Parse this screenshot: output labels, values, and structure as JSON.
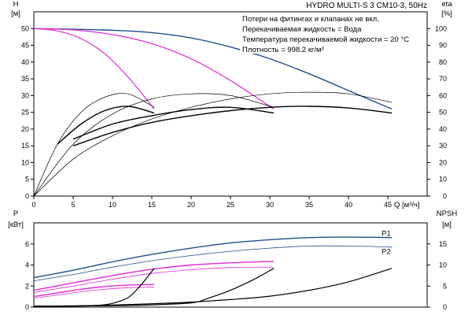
{
  "header": {
    "title": "HYDRO MULTI-S 3 CM10-3, 50Hz"
  },
  "notes": [
    "Потери на фитингах и клапанах не вкл.",
    "Перекачиваемая жидкость = Вода",
    "Температура перекачиваемой жидкости = 20 °C",
    "Плотность = 998.2 кг/м³"
  ],
  "colors": {
    "pump_curve": "#1f4e8c",
    "efficiency": "#e02ad6",
    "system": "#000000"
  },
  "chart_data": [
    {
      "id": "upper",
      "type": "line",
      "xlabel": "Q [м³/ч]",
      "ylabel_left": [
        "H",
        "[м]"
      ],
      "ylabel_right": [
        "eta",
        "[%]"
      ],
      "xlim": [
        0,
        50
      ],
      "ylim_left": [
        0,
        55
      ],
      "ylim_right": [
        0,
        110
      ],
      "x_ticks": [
        0,
        5,
        10,
        15,
        20,
        25,
        30,
        35,
        40,
        45
      ],
      "x_tick_labels": [
        "0",
        "5",
        "10",
        "15",
        "20",
        "25",
        "30",
        "35",
        "40",
        "45"
      ],
      "y_ticks_left": [
        0,
        5,
        10,
        15,
        20,
        25,
        30,
        35,
        40,
        45,
        50
      ],
      "y_tick_labels_left": [
        "0",
        "5",
        "10",
        "15",
        "20",
        "25",
        "30",
        "35",
        "40",
        "45",
        "50"
      ],
      "y_ticks_right": [
        0,
        10,
        20,
        30,
        40,
        50,
        60,
        70,
        80,
        90,
        100
      ],
      "y_tick_labels_right": [
        "0",
        "10",
        "20",
        "30",
        "40",
        "50",
        "60",
        "70",
        "80",
        "90",
        "100"
      ],
      "grid": false,
      "series": [
        {
          "axis": "left",
          "color": "#1f4e8c",
          "width": 1.4,
          "x": [
            0,
            5,
            10,
            15,
            20,
            25,
            30,
            35,
            40,
            45.5
          ],
          "y": [
            50,
            49.8,
            49.5,
            48.8,
            47.2,
            44.5,
            41,
            36.5,
            31.5,
            26
          ]
        },
        {
          "axis": "left",
          "color": "#e02ad6",
          "width": 1.2,
          "x": [
            0,
            5,
            10,
            15,
            20,
            25,
            30.5
          ],
          "y": [
            50,
            49.6,
            48.2,
            45.5,
            41,
            34.5,
            26
          ]
        },
        {
          "axis": "left",
          "color": "#e02ad6",
          "width": 1.2,
          "x": [
            0,
            3,
            6,
            9,
            12,
            15.3
          ],
          "y": [
            50,
            49.3,
            47,
            42.5,
            35.5,
            26
          ]
        },
        {
          "axis": "right",
          "color": "#000000",
          "width": 0.7,
          "x": [
            0,
            5,
            10,
            15,
            20,
            25,
            30,
            35,
            40,
            45.5
          ],
          "y": [
            0,
            22,
            36,
            46,
            53,
            58,
            61,
            62,
            61,
            56
          ]
        },
        {
          "axis": "right",
          "color": "#000000",
          "width": 0.7,
          "x": [
            0,
            5,
            10,
            15,
            20,
            25,
            30.5
          ],
          "y": [
            0,
            31,
            49,
            58,
            61,
            60,
            53
          ]
        },
        {
          "axis": "right",
          "color": "#000000",
          "width": 0.7,
          "x": [
            0,
            3,
            6,
            9,
            12,
            15.3
          ],
          "y": [
            0,
            31,
            50,
            59,
            61,
            53
          ]
        },
        {
          "axis": "left",
          "color": "#000000",
          "width": 1.4,
          "x": [
            5,
            10,
            15,
            20,
            25,
            30,
            35,
            40,
            45.5
          ],
          "y": [
            15,
            19,
            22,
            24,
            25.5,
            26.5,
            26.8,
            26.3,
            24.8
          ]
        },
        {
          "axis": "left",
          "color": "#000000",
          "width": 1.4,
          "x": [
            5,
            10,
            15,
            20,
            25,
            30.5
          ],
          "y": [
            17,
            21.5,
            24,
            25.8,
            26.5,
            24.8
          ]
        },
        {
          "axis": "left",
          "color": "#000000",
          "width": 1.4,
          "x": [
            3,
            6,
            9,
            12,
            15.3
          ],
          "y": [
            15.5,
            21.5,
            25.5,
            26.8,
            24.8
          ]
        }
      ]
    },
    {
      "id": "lower",
      "type": "line",
      "ylabel_left": [
        "P",
        "[кВт]"
      ],
      "ylabel_right": [
        "NPSH",
        "[м]"
      ],
      "xlim": [
        0,
        50
      ],
      "ylim_left": [
        0,
        8
      ],
      "ylim_right": [
        0,
        20
      ],
      "y_ticks_left": [
        0,
        2,
        4,
        6
      ],
      "y_tick_labels_left": [
        "0",
        "2",
        "4",
        "6"
      ],
      "y_ticks_right": [
        0,
        5,
        10,
        15
      ],
      "y_tick_labels_right": [
        "0",
        "5",
        "10",
        "15"
      ],
      "grid": false,
      "series_labels": [
        {
          "text": "P1",
          "x": 44.2,
          "y": 6.75
        },
        {
          "text": "P2",
          "x": 44.2,
          "y": 5.05
        }
      ],
      "series": [
        {
          "name": "P1",
          "axis": "left",
          "color": "#1f4e8c",
          "width": 1.4,
          "x": [
            0,
            5,
            10,
            15,
            20,
            25,
            30,
            35,
            40,
            45.5
          ],
          "y": [
            2.8,
            3.5,
            4.3,
            5,
            5.6,
            6.1,
            6.4,
            6.6,
            6.65,
            6.6
          ]
        },
        {
          "name": "P2",
          "axis": "left",
          "color": "#1f4e8c",
          "width": 0.8,
          "x": [
            0,
            5,
            10,
            15,
            20,
            25,
            30,
            35,
            40,
            45.5
          ],
          "y": [
            2.5,
            3.1,
            3.8,
            4.4,
            4.9,
            5.3,
            5.6,
            5.8,
            5.8,
            5.7
          ]
        },
        {
          "axis": "left",
          "color": "#e02ad6",
          "width": 1.4,
          "x": [
            0,
            5,
            10,
            15,
            20,
            25,
            30.5
          ],
          "y": [
            1.6,
            2.3,
            3,
            3.6,
            4,
            4.2,
            4.35
          ]
        },
        {
          "axis": "left",
          "color": "#e02ad6",
          "width": 0.8,
          "x": [
            0,
            5,
            10,
            15,
            20,
            25,
            30.5
          ],
          "y": [
            1.4,
            2,
            2.65,
            3.2,
            3.55,
            3.75,
            3.8
          ]
        },
        {
          "axis": "left",
          "color": "#e02ad6",
          "width": 1.4,
          "x": [
            0,
            3,
            6,
            9,
            12,
            15.3
          ],
          "y": [
            1,
            1.35,
            1.7,
            1.95,
            2.1,
            2.15
          ]
        },
        {
          "axis": "left",
          "color": "#e02ad6",
          "width": 0.8,
          "x": [
            0,
            3,
            6,
            9,
            12,
            15.3
          ],
          "y": [
            0.85,
            1.15,
            1.45,
            1.7,
            1.85,
            1.9
          ]
        },
        {
          "axis": "right",
          "color": "#000000",
          "width": 1.2,
          "x": [
            0,
            5,
            10,
            15,
            20,
            25,
            30,
            35,
            40,
            45.5
          ],
          "y": [
            0.2,
            0.3,
            0.5,
            0.8,
            1.2,
            1.8,
            2.6,
            4,
            6,
            9.2
          ]
        },
        {
          "axis": "right",
          "color": "#000000",
          "width": 1.2,
          "x": [
            0,
            5,
            10,
            15,
            20,
            22,
            25,
            28,
            30.5
          ],
          "y": [
            0.2,
            0.25,
            0.35,
            0.55,
            1,
            2,
            4,
            6.6,
            9.2
          ]
        },
        {
          "axis": "right",
          "color": "#000000",
          "width": 1.2,
          "x": [
            0,
            5,
            8,
            10,
            12,
            13.5,
            15.3
          ],
          "y": [
            0.2,
            0.25,
            0.4,
            0.9,
            2.3,
            5,
            9.2
          ]
        }
      ]
    }
  ]
}
